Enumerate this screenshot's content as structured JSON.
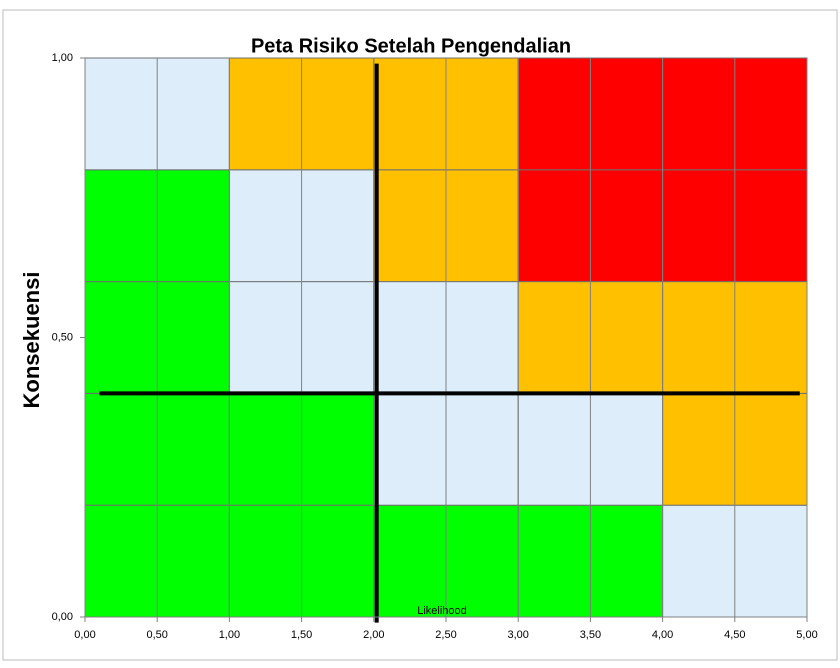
{
  "chart_data": {
    "type": "riskmap",
    "title": "Peta Risiko Setelah Pengendalian",
    "x_label": "Likelihood",
    "y_label": "Konsekuensi",
    "x_edges": [
      0,
      1,
      2,
      3,
      4,
      5
    ],
    "y_edges": [
      0,
      0.2,
      0.4,
      0.6,
      0.8,
      1
    ],
    "cell_colors": [
      [
        "#00ff00",
        "#00ff00",
        "#00ff00",
        "#00ff00",
        "#ddeefa"
      ],
      [
        "#00ff00",
        "#00ff00",
        "#ddeefa",
        "#ddeefa",
        "#ffc000"
      ],
      [
        "#00ff00",
        "#ddeefa",
        "#ddeefa",
        "#ffc000",
        "#ffc000"
      ],
      [
        "#00ff00",
        "#ddeefa",
        "#ffc000",
        "#ff0000",
        "#ff0000"
      ],
      [
        "#ddeefa",
        "#ffc000",
        "#ffc000",
        "#ff0000",
        "#ff0000"
      ]
    ],
    "lines": [
      {
        "color": "#000000",
        "x": [
          2.02,
          2.02
        ],
        "y": [
          0.99,
          -0.01
        ]
      },
      {
        "color": "#000000",
        "x": [
          0.1,
          4.95
        ],
        "y": [
          0.4,
          0.4
        ]
      }
    ],
    "xlim": [
      0,
      5
    ],
    "ylim": [
      0,
      1
    ],
    "xticks": [
      {
        "value": 0,
        "label": "0,00"
      },
      {
        "value": 0.5,
        "label": "0,50"
      },
      {
        "value": 1,
        "label": "1,00"
      },
      {
        "value": 1.5,
        "label": "1,50"
      },
      {
        "value": 2,
        "label": "2,00"
      },
      {
        "value": 2.5,
        "label": "2,50"
      },
      {
        "value": 3,
        "label": "3,00"
      },
      {
        "value": 3.5,
        "label": "3,50"
      },
      {
        "value": 4,
        "label": "4,00"
      },
      {
        "value": 4.5,
        "label": "4,50"
      },
      {
        "value": 5,
        "label": "5,00"
      }
    ],
    "yticks": [
      {
        "value": 0,
        "label": "0,00"
      },
      {
        "value": 0.5,
        "label": "0,50"
      },
      {
        "value": 1,
        "label": "1,00"
      }
    ],
    "grid": true
  }
}
